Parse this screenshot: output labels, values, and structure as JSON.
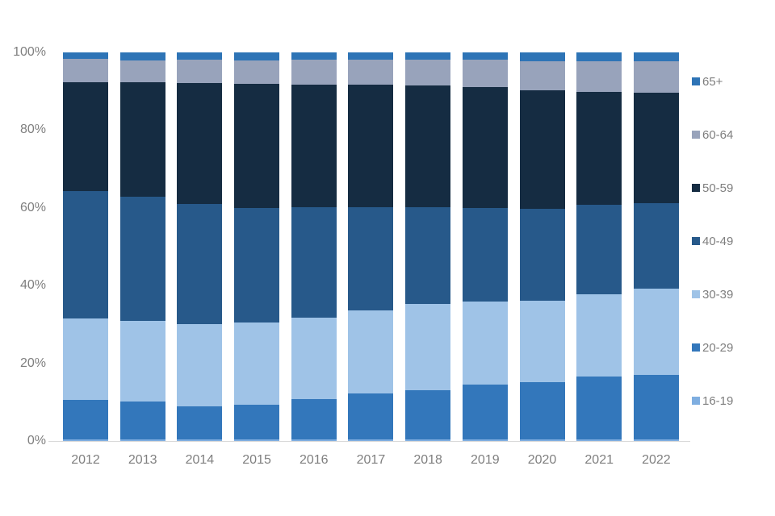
{
  "colors": {
    "axis_line": "#d9d9d9",
    "label_text": "#7f7f7f",
    "background": "#ffffff"
  },
  "chart_data": {
    "type": "bar",
    "variant": "stacked-100-percent",
    "title": "",
    "xlabel": "",
    "ylabel": "",
    "grid": false,
    "legend_position": "right",
    "categories": [
      "2012",
      "2013",
      "2014",
      "2015",
      "2016",
      "2017",
      "2018",
      "2019",
      "2020",
      "2021",
      "2022"
    ],
    "y_axis": {
      "tick_labels": [
        "0%",
        "20%",
        "40%",
        "60%",
        "80%",
        "100%"
      ],
      "tick_values": [
        0,
        20,
        40,
        60,
        80,
        100
      ],
      "range": [
        0,
        100
      ]
    },
    "series": [
      {
        "name": "16-19",
        "color": "#7faee0",
        "values": [
          0.4,
          0.4,
          0.4,
          0.4,
          0.4,
          0.4,
          0.4,
          0.4,
          0.4,
          0.4,
          0.4
        ]
      },
      {
        "name": "20-29",
        "color": "#3377bb",
        "values": [
          10.1,
          9.7,
          8.6,
          9.0,
          10.3,
          11.9,
          12.7,
          14.1,
          14.8,
          16.1,
          16.7
        ]
      },
      {
        "name": "30-39",
        "color": "#9fc3e7",
        "values": [
          21.1,
          20.8,
          21.0,
          21.2,
          21.1,
          21.4,
          22.1,
          21.4,
          20.9,
          21.2,
          22.1
        ]
      },
      {
        "name": "40-49",
        "color": "#27598a",
        "values": [
          32.8,
          31.9,
          31.1,
          29.3,
          28.3,
          26.4,
          24.9,
          24.0,
          23.7,
          23.1,
          22.1
        ]
      },
      {
        "name": "50-59",
        "color": "#152c42",
        "values": [
          28.0,
          29.6,
          31.1,
          32.0,
          31.6,
          31.6,
          31.5,
          31.2,
          30.4,
          29.1,
          28.3
        ]
      },
      {
        "name": "60-64",
        "color": "#98a3bb",
        "values": [
          6.0,
          5.5,
          5.9,
          6.1,
          6.4,
          6.4,
          6.5,
          7.1,
          7.6,
          7.9,
          8.2
        ]
      },
      {
        "name": "65+",
        "color": "#2e74b6",
        "values": [
          1.6,
          2.1,
          1.9,
          2.0,
          1.9,
          1.9,
          1.9,
          1.8,
          2.2,
          2.2,
          2.2
        ]
      }
    ],
    "legend": {
      "items": [
        {
          "label": "65+",
          "color": "#2e74b6"
        },
        {
          "label": "60-64",
          "color": "#98a3bb"
        },
        {
          "label": "50-59",
          "color": "#152c42"
        },
        {
          "label": "40-49",
          "color": "#27598a"
        },
        {
          "label": "30-39",
          "color": "#9fc3e7"
        },
        {
          "label": "20-29",
          "color": "#3377bb"
        },
        {
          "label": "16-19",
          "color": "#7faee0"
        }
      ]
    }
  }
}
